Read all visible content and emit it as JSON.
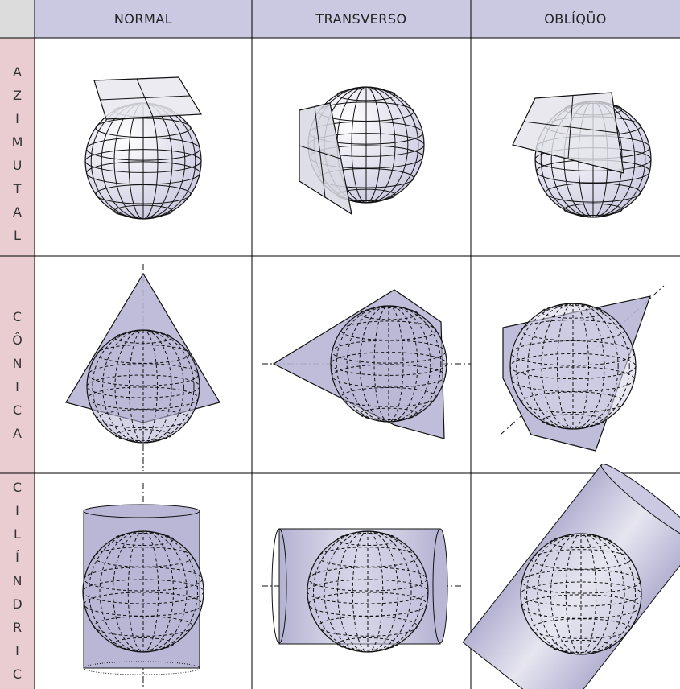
{
  "table": {
    "columns": [
      "NORMAL",
      "TRANSVERSO",
      "OBLÍQÜO"
    ],
    "rows": [
      "AZIMUTAL",
      "CÔNICA",
      "CILÍNDRICA"
    ]
  }
}
